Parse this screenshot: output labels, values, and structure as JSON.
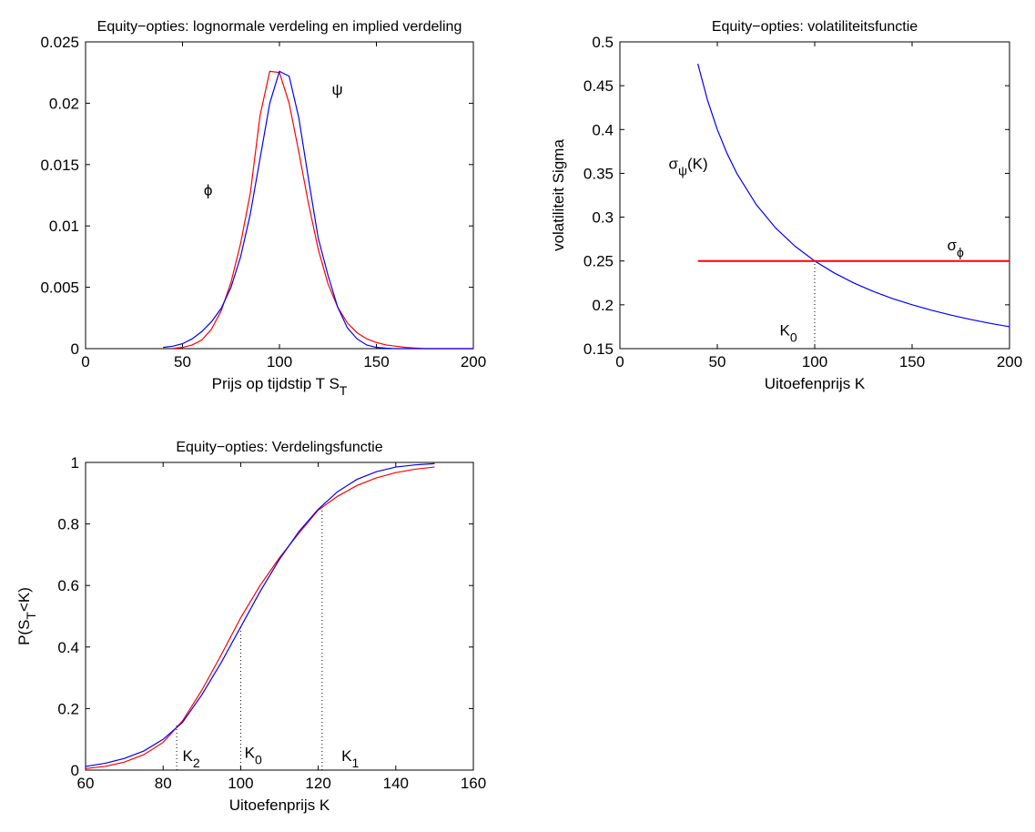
{
  "chart_data": [
    {
      "type": "line",
      "title": "Equity−opties: lognormale verdeling en implied verdeling",
      "xlabel": [
        "Prijs op tijdstip T S",
        {
          "sub": "T"
        }
      ],
      "xlim": [
        0,
        200
      ],
      "xticks": [
        0,
        50,
        100,
        150,
        200
      ],
      "ylim": [
        0,
        0.025
      ],
      "yticks": [
        0,
        0.005,
        0.01,
        0.015,
        0.02,
        0.025
      ],
      "x": [
        40,
        45,
        50,
        55,
        60,
        65,
        70,
        75,
        80,
        85,
        90,
        95,
        100,
        105,
        110,
        115,
        120,
        125,
        130,
        135,
        140,
        145,
        150,
        155,
        160,
        165,
        170,
        175,
        180,
        185,
        190,
        195,
        200
      ],
      "series": [
        {
          "color": "#ff0000",
          "values": [
            null,
            2e-05,
            0.0001,
            0.0003,
            0.0007,
            0.0016,
            0.0031,
            0.0054,
            0.0086,
            0.0127,
            0.019,
            0.0226,
            0.0225,
            0.02,
            0.016,
            0.0118,
            0.0081,
            0.0053,
            0.0034,
            0.0021,
            0.0013,
            0.0008,
            0.0005,
            0.0003,
            0.0002,
            0.0001,
            5e-05,
            0,
            0,
            0,
            0,
            0,
            0
          ]
        },
        {
          "color": "#0000ff",
          "values": [
            0.0001,
            0.0002,
            0.0004,
            0.0008,
            0.0014,
            0.0022,
            0.0033,
            0.005,
            0.0075,
            0.011,
            0.0155,
            0.02,
            0.0226,
            0.0222,
            0.0188,
            0.0138,
            0.009,
            0.006,
            0.0034,
            0.0017,
            0.0008,
            0.0003,
            0.0001,
            4e-05,
            0,
            0,
            0,
            0,
            0,
            0,
            0,
            0,
            0
          ]
        }
      ],
      "annotations": [
        [
          "ϕ"
        ],
        [
          "ψ"
        ]
      ]
    },
    {
      "type": "line",
      "title": "Equity−opties: volatiliteitsfunctie",
      "xlabel": [
        "Uitoefenprijs K"
      ],
      "ylabel": [
        "volatiliteit Sigma"
      ],
      "xlim": [
        0,
        200
      ],
      "xticks": [
        0,
        50,
        100,
        150,
        200
      ],
      "ylim": [
        0.15,
        0.5
      ],
      "yticks": [
        0.15,
        0.2,
        0.25,
        0.3,
        0.35,
        0.4,
        0.45,
        0.5
      ],
      "x": [
        40,
        45,
        50,
        55,
        60,
        70,
        80,
        90,
        100,
        110,
        120,
        130,
        140,
        150,
        160,
        170,
        180,
        190,
        200
      ],
      "series": [
        {
          "color": "#0000ff",
          "values": [
            0.475,
            0.4333,
            0.4,
            0.3727,
            0.35,
            0.3143,
            0.2875,
            0.2667,
            0.25,
            0.2364,
            0.225,
            0.2154,
            0.2071,
            0.2,
            0.1938,
            0.1882,
            0.1833,
            0.1789,
            0.175
          ]
        },
        {
          "color": "#ff0000",
          "width": 2,
          "values": [
            0.25,
            0.25,
            0.25,
            0.25,
            0.25,
            0.25,
            0.25,
            0.25,
            0.25,
            0.25,
            0.25,
            0.25,
            0.25,
            0.25,
            0.25,
            0.25,
            0.25,
            0.25,
            0.25
          ]
        }
      ],
      "reference_lines": [
        {
          "x": 100,
          "y": 0.25
        }
      ],
      "annotations": [
        [
          "σ",
          {
            "sub": "ψ"
          },
          "(K)"
        ],
        [
          "σ",
          {
            "sub": "ϕ"
          }
        ],
        [
          "K",
          {
            "sub": "0"
          }
        ]
      ]
    },
    {
      "type": "line",
      "title": "Equity−opties: Verdelingsfunctie",
      "xlabel": [
        "Uitoefenprijs K"
      ],
      "ylabel": [
        "P(S",
        {
          "sub": "T"
        },
        "<K)"
      ],
      "xlim": [
        60,
        160
      ],
      "xticks": [
        60,
        80,
        100,
        120,
        140,
        160
      ],
      "ylim": [
        0,
        1
      ],
      "yticks": [
        0,
        0.2,
        0.4,
        0.6,
        0.8,
        1
      ],
      "x": [
        60,
        65,
        70,
        75,
        80,
        85,
        90,
        95,
        100,
        105,
        110,
        115,
        120,
        125,
        130,
        135,
        140,
        145,
        150
      ],
      "series": [
        {
          "color": "#ff0000",
          "values": [
            0.005,
            0.012,
            0.026,
            0.05,
            0.09,
            0.16,
            0.26,
            0.375,
            0.495,
            0.6,
            0.69,
            0.77,
            0.845,
            0.89,
            0.925,
            0.95,
            0.967,
            0.978,
            0.985
          ]
        },
        {
          "color": "#0000ff",
          "values": [
            0.012,
            0.022,
            0.038,
            0.062,
            0.1,
            0.155,
            0.245,
            0.35,
            0.465,
            0.58,
            0.685,
            0.775,
            0.848,
            0.905,
            0.945,
            0.97,
            0.985,
            0.992,
            0.996
          ]
        }
      ],
      "reference_lines": [
        {
          "x": 83.5,
          "y": 0.15
        },
        {
          "x": 100,
          "y": 0.47
        },
        {
          "x": 121,
          "y": 0.86
        }
      ],
      "annotations": [
        [
          "K",
          {
            "sub": "2"
          }
        ],
        [
          "K",
          {
            "sub": "0"
          }
        ],
        [
          "K",
          {
            "sub": "1"
          }
        ]
      ]
    }
  ]
}
